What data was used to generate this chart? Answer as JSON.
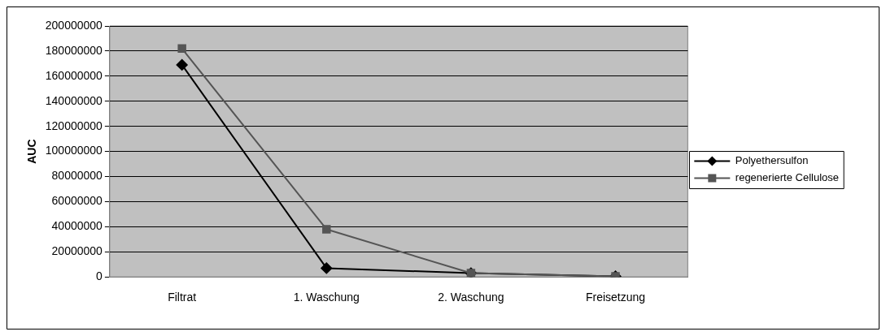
{
  "chart_data": {
    "type": "line",
    "ylabel": "AUC",
    "categories": [
      "Filtrat",
      "1. Waschung",
      "2. Waschung",
      "Freisetzung"
    ],
    "series": [
      {
        "name": "Polyethersulfon",
        "color": "#000000",
        "marker": "diamond",
        "values": [
          169000000,
          7000000,
          3000000,
          500000
        ]
      },
      {
        "name": "regenerierte Cellulose",
        "color": "#555555",
        "marker": "square",
        "values": [
          182000000,
          38000000,
          3000000,
          500000
        ]
      }
    ],
    "ylim": [
      0,
      200000000
    ],
    "yticks": [
      0,
      20000000,
      40000000,
      60000000,
      80000000,
      100000000,
      120000000,
      140000000,
      160000000,
      180000000,
      200000000
    ],
    "grid": "y",
    "legend": "right",
    "line_style": "solid"
  }
}
